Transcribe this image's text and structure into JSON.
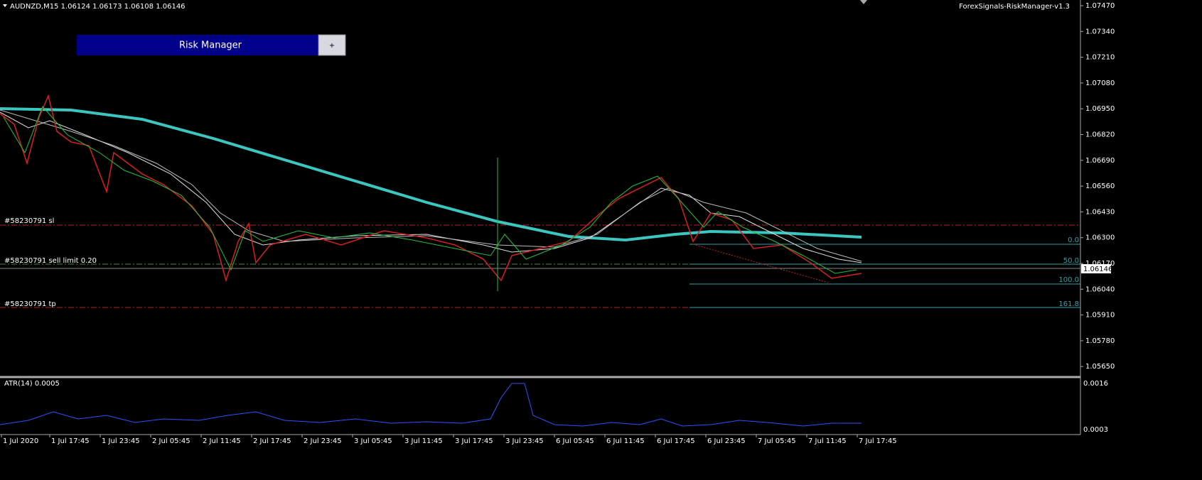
{
  "header": {
    "symbol_info": "AUDNZD,M15  1.06124 1.06173 1.06108 1.06146",
    "indicator": "ForexSignals-RiskManager-v1.3"
  },
  "panel": {
    "title": "Risk Manager",
    "toggle": "+"
  },
  "orders": {
    "sl": "#58230791 sl",
    "sell_limit": "#58230791 sell limit 0.20",
    "tp": "#58230791 tp"
  },
  "fibonacci": [
    "0.0",
    "50.0",
    "100.0",
    "161.8"
  ],
  "price_axis": [
    "1.07470",
    "1.07340",
    "1.07210",
    "1.07080",
    "1.06950",
    "1.06820",
    "1.06690",
    "1.06560",
    "1.06430",
    "1.06300",
    "1.06170",
    "1.06040",
    "1.05910",
    "1.05780",
    "1.05650"
  ],
  "current_price": "1.06146",
  "atr": {
    "label": "ATR(14) 0.0005",
    "axis": [
      "0.0016",
      "0.0003"
    ]
  },
  "time_axis": [
    "1 Jul 2020",
    "1 Jul 17:45",
    "1 Jul 23:45",
    "2 Jul 05:45",
    "2 Jul 11:45",
    "2 Jul 17:45",
    "2 Jul 23:45",
    "3 Jul 05:45",
    "3 Jul 11:45",
    "3 Jul 17:45",
    "3 Jul 23:45",
    "6 Jul 05:45",
    "6 Jul 11:45",
    "6 Jul 17:45",
    "6 Jul 23:45",
    "7 Jul 05:45",
    "7 Jul 11:45",
    "7 Jul 17:45"
  ]
}
